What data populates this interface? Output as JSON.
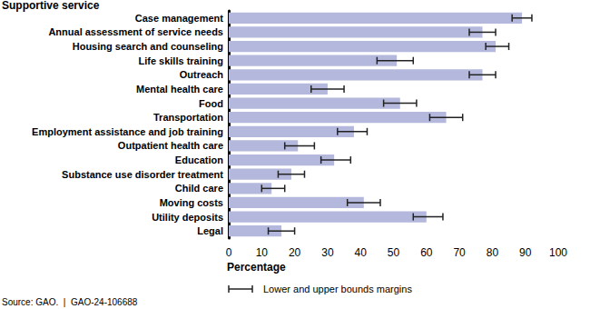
{
  "chart_data": {
    "type": "bar",
    "orientation": "horizontal",
    "y_label": "Supportive service",
    "x_label": "Percentage",
    "error_bar_label": "Lower and upper bounds margins",
    "source": "Source: GAO.  |  GAO-24-106688",
    "categories": [
      "Case management",
      "Annual assessment of service needs",
      "Housing search and counseling",
      "Life skills training",
      "Outreach",
      "Mental health care",
      "Food",
      "Transportation",
      "Employment assistance and job training",
      "Outpatient health care",
      "Education",
      "Substance use disorder treatment",
      "Child care",
      "Moving costs",
      "Utility deposits",
      "Legal"
    ],
    "values": [
      89,
      77,
      81,
      51,
      77,
      30,
      52,
      66,
      38,
      21,
      32,
      19,
      13,
      41,
      60,
      16
    ],
    "lower": [
      86,
      73,
      78,
      45,
      73,
      25,
      47,
      61,
      33,
      17,
      28,
      15,
      10,
      36,
      56,
      12
    ],
    "upper": [
      92,
      81,
      85,
      56,
      81,
      35,
      57,
      71,
      42,
      26,
      37,
      23,
      17,
      46,
      65,
      20
    ],
    "color": "#b4b8dc",
    "xlim": [
      0,
      100
    ],
    "xticks": [
      0,
      10,
      20,
      30,
      40,
      50,
      60,
      70,
      80,
      90,
      100
    ],
    "grid": false
  }
}
